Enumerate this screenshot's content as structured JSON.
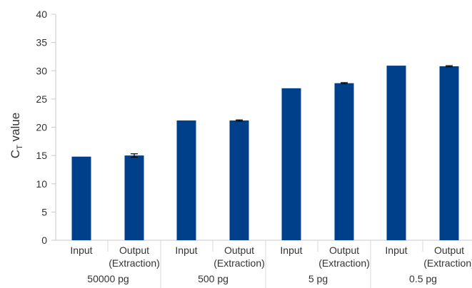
{
  "chart_data": {
    "type": "bar",
    "ylabel_main": "C",
    "ylabel_sub": "T",
    "ylabel_rest": " value",
    "ylim": [
      0,
      40
    ],
    "yticks": [
      "0",
      "5",
      "10",
      "15",
      "20",
      "25",
      "30",
      "35",
      "40"
    ],
    "grid": false,
    "bar_color": "#00408b",
    "groups": [
      {
        "label": "50000 pg",
        "bars": [
          {
            "label_lines": [
              "Input"
            ],
            "value": 14.8,
            "error": 0
          },
          {
            "label_lines": [
              "Output",
              "(Extraction)"
            ],
            "value": 15.0,
            "error": 0.3
          }
        ]
      },
      {
        "label": "500 pg",
        "bars": [
          {
            "label_lines": [
              "Input"
            ],
            "value": 21.2,
            "error": 0
          },
          {
            "label_lines": [
              "Output",
              "(Extraction)"
            ],
            "value": 21.2,
            "error": 0.1
          }
        ]
      },
      {
        "label": "5 pg",
        "bars": [
          {
            "label_lines": [
              "Input"
            ],
            "value": 26.9,
            "error": 0
          },
          {
            "label_lines": [
              "Output",
              "(Extraction)"
            ],
            "value": 27.8,
            "error": 0.1
          }
        ]
      },
      {
        "label": "0.5 pg",
        "bars": [
          {
            "label_lines": [
              "Input"
            ],
            "value": 30.9,
            "error": 0
          },
          {
            "label_lines": [
              "Output",
              "(Extraction)"
            ],
            "value": 30.8,
            "error": 0.1
          }
        ]
      }
    ]
  }
}
